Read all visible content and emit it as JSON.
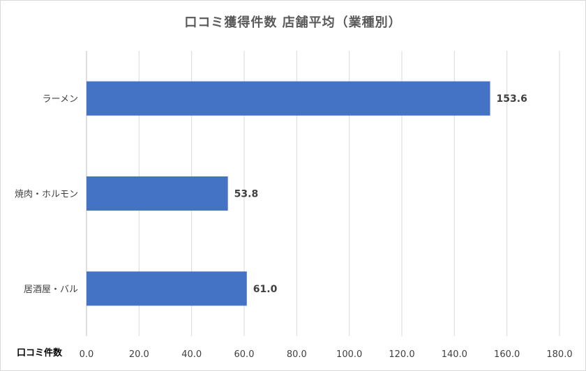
{
  "chart_data": {
    "type": "bar",
    "orientation": "horizontal",
    "title": "口コミ獲得件数 店舗平均（業種別）",
    "xlabel": "口コミ件数",
    "ylabel": "",
    "categories": [
      "ラーメン",
      "焼肉・ホルモン",
      "居酒屋・バル"
    ],
    "values": [
      153.6,
      53.8,
      61.0
    ],
    "value_labels": [
      "153.6",
      "53.8",
      "61.0"
    ],
    "xlim": [
      0,
      180
    ],
    "xticks": [
      0,
      20,
      40,
      60,
      80,
      100,
      120,
      140,
      160,
      180
    ],
    "xtick_labels": [
      "0.0",
      "20.0",
      "40.0",
      "60.0",
      "80.0",
      "100.0",
      "120.0",
      "140.0",
      "160.0",
      "180.0"
    ],
    "grid": true,
    "legend": "none",
    "bar_color": "#4472C4",
    "grid_color": "#d9d9d9"
  }
}
